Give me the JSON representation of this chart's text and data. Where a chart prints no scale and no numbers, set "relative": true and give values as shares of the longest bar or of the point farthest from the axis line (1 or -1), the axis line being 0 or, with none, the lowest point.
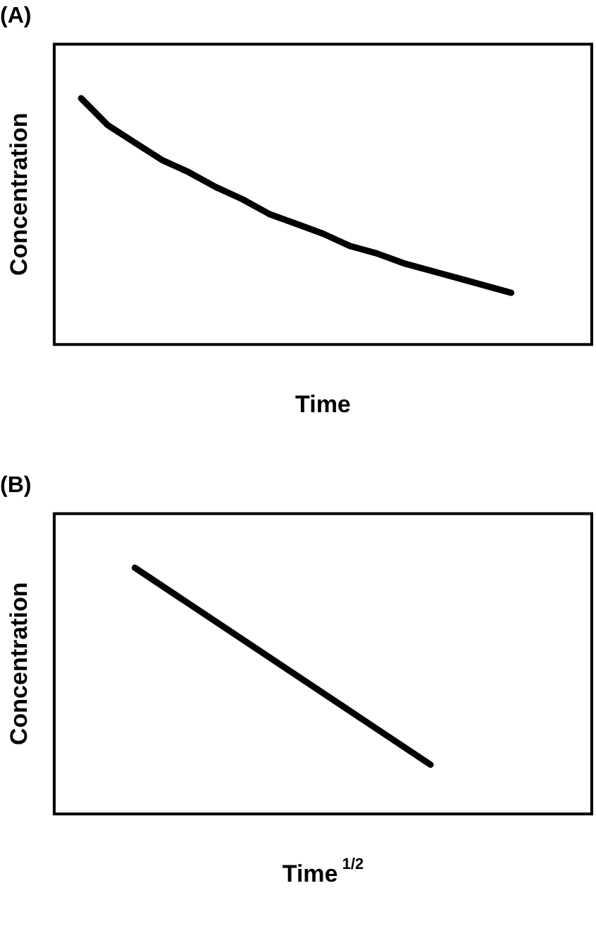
{
  "chart_data": [
    {
      "type": "line",
      "title": "(A)",
      "xlabel": "Time",
      "ylabel": "Concentration",
      "relative": true,
      "legend": false,
      "grid": false,
      "marker": "none",
      "categories": [
        null,
        null,
        null,
        null,
        null,
        null,
        null,
        null,
        null,
        null,
        null,
        null,
        null,
        null,
        null,
        null,
        null,
        null,
        null,
        null,
        null
      ],
      "series": [
        {
          "color": "#000000",
          "values": [
            null,
            1,
            0.89,
            0.82,
            0.75,
            0.7,
            0.64,
            0.59,
            0.53,
            0.49,
            0.45,
            0.4,
            0.37,
            0.33,
            0.3,
            0.27,
            0.24,
            0.21,
            null,
            null,
            null
          ]
        }
      ]
    },
    {
      "type": "line",
      "title": "(B)",
      "xlabel": "Time$^{1/2}$",
      "ylabel": "Concentration",
      "relative": true,
      "legend": false,
      "grid": false,
      "marker": "none",
      "categories": [
        null,
        null,
        null,
        null,
        null,
        null,
        null,
        null,
        null,
        null,
        null,
        null,
        null,
        null,
        null,
        null,
        null,
        null,
        null,
        null,
        null
      ],
      "series": [
        {
          "color": "#000000",
          "values": [
            null,
            null,
            null,
            1,
            null,
            null,
            null,
            null,
            null,
            null,
            null,
            null,
            null,
            null,
            0.2,
            null,
            null,
            null,
            null,
            null,
            null
          ]
        }
      ]
    }
  ]
}
